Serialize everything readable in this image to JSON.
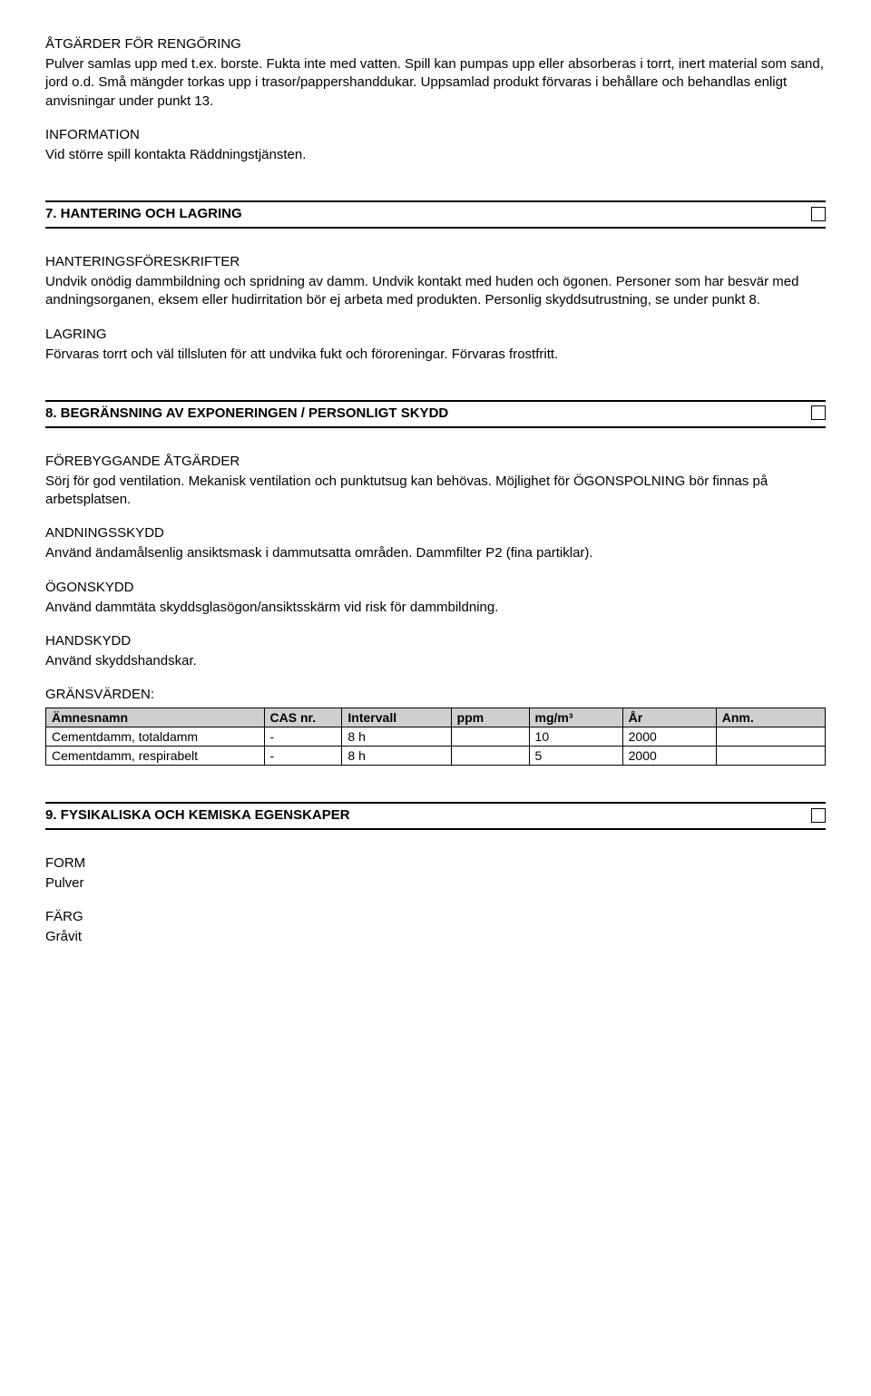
{
  "cleaning": {
    "heading": "ÅTGÄRDER FÖR RENGÖRING",
    "text": "Pulver samlas upp med t.ex. borste. Fukta inte med vatten. Spill kan pumpas upp eller absorberas i torrt, inert material som sand, jord o.d. Små mängder torkas upp i trasor/pappershanddukar. Uppsamlad produkt förvaras i behållare och behandlas enligt anvisningar under punkt 13."
  },
  "information": {
    "heading": "INFORMATION",
    "text": "Vid större spill kontakta Räddningstjänsten."
  },
  "section7": {
    "title": "7. HANTERING OCH LAGRING",
    "handling": {
      "heading": "HANTERINGSFÖRESKRIFTER",
      "text": "Undvik onödig dammbildning och spridning av damm. Undvik kontakt med huden och ögonen. Personer som har besvär med andningsorganen, eksem eller hudirritation bör ej arbeta med produkten. Personlig skyddsutrustning, se under punkt 8."
    },
    "storage": {
      "heading": "LAGRING",
      "text": "Förvaras torrt och väl tillsluten för att undvika fukt och föroreningar. Förvaras frostfritt."
    }
  },
  "section8": {
    "title": "8. BEGRÄNSNING AV EXPONERINGEN / PERSONLIGT SKYDD",
    "prevent": {
      "heading": "FÖREBYGGANDE ÅTGÄRDER",
      "text": "Sörj för god ventilation. Mekanisk ventilation och punktutsug kan behövas. Möjlighet för ÖGONSPOLNING bör finnas på arbetsplatsen."
    },
    "breath": {
      "heading": "ANDNINGSSKYDD",
      "text": "Använd ändamålsenlig ansiktsmask i dammutsatta områden. Dammfilter P2 (fina partiklar)."
    },
    "eye": {
      "heading": "ÖGONSKYDD",
      "text": "Använd dammtäta skyddsglasögon/ansiktsskärm vid risk för dammbildning."
    },
    "hand": {
      "heading": "HANDSKYDD",
      "text": "Använd skyddshandskar."
    },
    "limits_heading": "GRÄNSVÄRDEN:",
    "table": {
      "columns": [
        "Ämnesnamn",
        "CAS nr.",
        "Intervall",
        "ppm",
        "mg/m³",
        "År",
        "Anm."
      ],
      "rows": [
        [
          "Cementdamm, totaldamm",
          "-",
          "8 h",
          "",
          "10",
          "2000",
          ""
        ],
        [
          "Cementdamm, respirabelt",
          "-",
          "8 h",
          "",
          "5",
          "2000",
          ""
        ]
      ]
    }
  },
  "section9": {
    "title": "9. FYSIKALISKA OCH KEMISKA EGENSKAPER",
    "form": {
      "heading": "FORM",
      "text": "Pulver"
    },
    "color": {
      "heading": "FÄRG",
      "text": "Gråvit"
    }
  }
}
